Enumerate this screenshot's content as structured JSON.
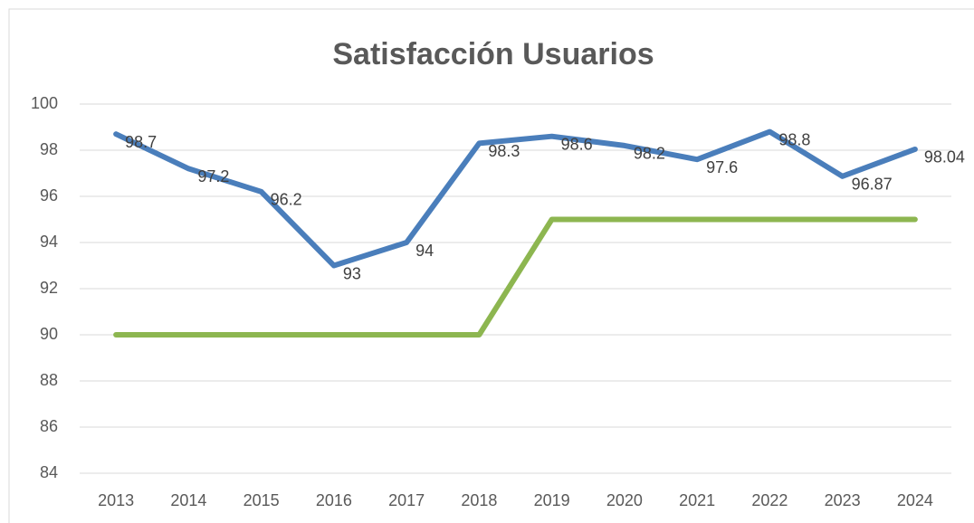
{
  "chart_data": {
    "type": "line",
    "title": "Satisfacción Usuarios",
    "categories": [
      "2013",
      "2014",
      "2015",
      "2016",
      "2017",
      "2018",
      "2019",
      "2020",
      "2021",
      "2022",
      "2023",
      "2024"
    ],
    "series": [
      {
        "color": "#4a7ebb",
        "values": [
          98.7,
          97.2,
          96.2,
          93,
          94,
          98.3,
          98.6,
          98.2,
          97.6,
          98.8,
          96.87,
          98.04
        ],
        "data_labels": true
      },
      {
        "color": "#8db650",
        "values": [
          90,
          90,
          90,
          90,
          90,
          90,
          95,
          95,
          95,
          95,
          95,
          95
        ],
        "data_labels": false
      }
    ],
    "ylim": [
      84,
      100
    ],
    "yticks": [
      84,
      86,
      88,
      90,
      92,
      94,
      96,
      98,
      100
    ],
    "grid": true
  }
}
